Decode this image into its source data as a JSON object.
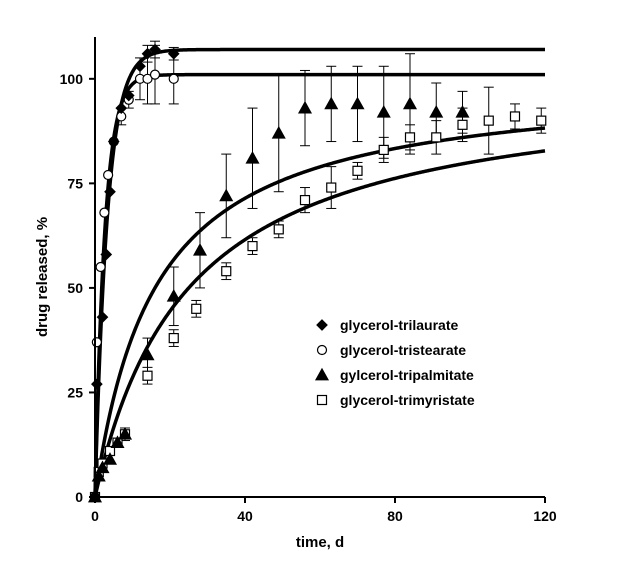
{
  "chart_data": {
    "type": "scatter",
    "title": "",
    "xlabel": "time, d",
    "ylabel": "drug released, %",
    "xlim": [
      0,
      120
    ],
    "ylim": [
      0,
      110
    ],
    "xticks": [
      0,
      40,
      80,
      120
    ],
    "yticks": [
      0,
      25,
      50,
      75,
      100
    ],
    "grid": false,
    "legend_position": "lower-right",
    "series": [
      {
        "name": "glycerol-trilaurate",
        "marker": "diamond-filled",
        "points": [
          {
            "x": 0,
            "y": 0,
            "err": 0
          },
          {
            "x": 0.5,
            "y": 27,
            "err": 0
          },
          {
            "x": 2,
            "y": 43,
            "err": 0
          },
          {
            "x": 3,
            "y": 58,
            "err": 0
          },
          {
            "x": 4,
            "y": 73,
            "err": 0
          },
          {
            "x": 5,
            "y": 85,
            "err": 0
          },
          {
            "x": 7,
            "y": 93,
            "err": 0
          },
          {
            "x": 9,
            "y": 96,
            "err": 0
          },
          {
            "x": 12,
            "y": 103,
            "err": 0
          },
          {
            "x": 14,
            "y": 106,
            "err": 2
          },
          {
            "x": 16,
            "y": 107,
            "err": 2
          },
          {
            "x": 21,
            "y": 106,
            "err": 1.5
          }
        ],
        "fit": {
          "type": "exponential",
          "plateau": 107,
          "k": 0.3
        }
      },
      {
        "name": "glycerol-tristearate",
        "marker": "circle-open",
        "points": [
          {
            "x": 0,
            "y": 0,
            "err": 0
          },
          {
            "x": 0.5,
            "y": 37,
            "err": 0
          },
          {
            "x": 1.5,
            "y": 55,
            "err": 0
          },
          {
            "x": 2.5,
            "y": 68,
            "err": 0
          },
          {
            "x": 3.5,
            "y": 77,
            "err": 0
          },
          {
            "x": 5,
            "y": 85,
            "err": 0
          },
          {
            "x": 7,
            "y": 91,
            "err": 2
          },
          {
            "x": 9,
            "y": 95,
            "err": 2
          },
          {
            "x": 12,
            "y": 100,
            "err": 5
          },
          {
            "x": 14,
            "y": 100,
            "err": 6
          },
          {
            "x": 16,
            "y": 101,
            "err": 7
          },
          {
            "x": 21,
            "y": 100,
            "err": 6
          }
        ],
        "fit": {
          "type": "exponential",
          "plateau": 101,
          "k": 0.38
        }
      },
      {
        "name": "gylcerol-tripalmitate",
        "marker": "triangle-filled",
        "points": [
          {
            "x": 0,
            "y": 0,
            "err": 0
          },
          {
            "x": 1,
            "y": 5,
            "err": 1
          },
          {
            "x": 2,
            "y": 7,
            "err": 1
          },
          {
            "x": 4,
            "y": 9,
            "err": 1
          },
          {
            "x": 6,
            "y": 13,
            "err": 1
          },
          {
            "x": 8,
            "y": 15,
            "err": 1.5
          },
          {
            "x": 14,
            "y": 34,
            "err": 4
          },
          {
            "x": 21,
            "y": 48,
            "err": 7
          },
          {
            "x": 28,
            "y": 59,
            "err": 9
          },
          {
            "x": 35,
            "y": 72,
            "err": 10
          },
          {
            "x": 42,
            "y": 81,
            "err": 12
          },
          {
            "x": 49,
            "y": 87,
            "err": 14
          },
          {
            "x": 56,
            "y": 93,
            "err": 9
          },
          {
            "x": 63,
            "y": 94,
            "err": 9
          },
          {
            "x": 70,
            "y": 94,
            "err": 9
          },
          {
            "x": 77,
            "y": 92,
            "err": 11
          },
          {
            "x": 84,
            "y": 94,
            "err": 12
          },
          {
            "x": 91,
            "y": 92,
            "err": 7
          },
          {
            "x": 98,
            "y": 92,
            "err": 5
          }
        ],
        "fit": {
          "type": "hyperbolic",
          "max": 100,
          "k": 16
        }
      },
      {
        "name": "glycerol-trimyristate",
        "marker": "square-open",
        "points": [
          {
            "x": 0,
            "y": 0,
            "err": 0
          },
          {
            "x": 1,
            "y": 6,
            "err": 1
          },
          {
            "x": 2,
            "y": 8,
            "err": 1
          },
          {
            "x": 4,
            "y": 11,
            "err": 1
          },
          {
            "x": 6,
            "y": 13,
            "err": 1
          },
          {
            "x": 8,
            "y": 15,
            "err": 1
          },
          {
            "x": 14,
            "y": 29,
            "err": 2
          },
          {
            "x": 21,
            "y": 38,
            "err": 2
          },
          {
            "x": 27,
            "y": 45,
            "err": 2
          },
          {
            "x": 35,
            "y": 54,
            "err": 2
          },
          {
            "x": 42,
            "y": 60,
            "err": 2
          },
          {
            "x": 49,
            "y": 64,
            "err": 2
          },
          {
            "x": 56,
            "y": 71,
            "err": 3
          },
          {
            "x": 63,
            "y": 74,
            "err": 5
          },
          {
            "x": 70,
            "y": 78,
            "err": 2
          },
          {
            "x": 77,
            "y": 83,
            "err": 3
          },
          {
            "x": 84,
            "y": 86,
            "err": 3
          },
          {
            "x": 91,
            "y": 86,
            "err": 4
          },
          {
            "x": 98,
            "y": 89,
            "err": 4
          },
          {
            "x": 105,
            "y": 90,
            "err": 8
          },
          {
            "x": 112,
            "y": 91,
            "err": 3
          },
          {
            "x": 119,
            "y": 90,
            "err": 3
          }
        ],
        "fit": {
          "type": "hyperbolic",
          "max": 100,
          "k": 25
        }
      }
    ]
  }
}
